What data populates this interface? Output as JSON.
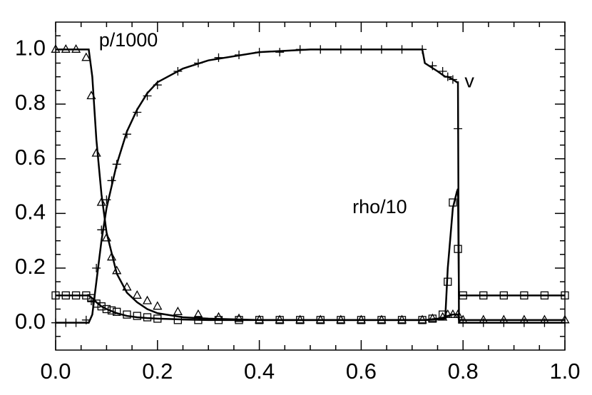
{
  "chart_data": {
    "type": "line",
    "xlim": [
      0,
      1
    ],
    "ylim": [
      -0.1,
      1.1
    ],
    "xticks": [
      {
        "value": 0,
        "label": "0.0"
      },
      0.2,
      0.4,
      0.6,
      0.8,
      {
        "value": 1,
        "label": "1.0"
      }
    ],
    "yticks": [
      {
        "value": 0,
        "label": "0.0"
      },
      0.2,
      0.4,
      0.6,
      0.8,
      {
        "value": 1,
        "label": "1.0"
      }
    ],
    "xminorticks": [
      0.05,
      0.1,
      0.15,
      0.25,
      0.3,
      0.35,
      0.45,
      0.5,
      0.55,
      0.65,
      0.7,
      0.75,
      0.85,
      0.9,
      0.95
    ],
    "yminorticks": [
      -0.05,
      0.05,
      0.1,
      0.15,
      0.25,
      0.3,
      0.35,
      0.45,
      0.5,
      0.55,
      0.65,
      0.7,
      0.75,
      0.85,
      0.9,
      0.95,
      1.05
    ],
    "x": [
      0,
      0.065,
      0.072,
      0.08,
      0.09,
      0.1,
      0.12,
      0.14,
      0.16,
      0.18,
      0.2,
      0.25,
      0.3,
      0.4,
      0.5,
      0.72,
      0.725,
      0.75,
      0.765,
      0.77,
      0.78,
      0.788,
      0.79,
      0.792,
      1
    ],
    "marker_x": [
      0,
      0.02,
      0.04,
      0.06,
      0.07,
      0.08,
      0.09,
      0.1,
      0.11,
      0.12,
      0.14,
      0.16,
      0.18,
      0.2,
      0.24,
      0.28,
      0.32,
      0.36,
      0.4,
      0.44,
      0.48,
      0.52,
      0.56,
      0.6,
      0.64,
      0.68,
      0.72,
      0.74,
      0.76,
      0.77,
      0.78,
      0.79,
      0.8,
      0.84,
      0.88,
      0.92,
      0.96,
      1
    ],
    "series": [
      {
        "name": "p/1000",
        "color": "#000000",
        "marker": "triangle",
        "values": [
          1,
          1,
          0.9,
          0.67,
          0.47,
          0.33,
          0.18,
          0.11,
          0.075,
          0.05,
          0.035,
          0.02,
          0.015,
          0.01,
          0.01,
          0.01,
          0.01,
          0.015,
          0.02,
          0.025,
          0.03,
          0.03,
          0.03,
          0.01,
          0.01
        ],
        "marker_values": [
          1,
          1,
          1,
          0.97,
          0.83,
          0.62,
          0.44,
          0.31,
          0.24,
          0.19,
          0.13,
          0.1,
          0.08,
          0.06,
          0.04,
          0.03,
          0.02,
          0.015,
          0.01,
          0.01,
          0.01,
          0.01,
          0.01,
          0.01,
          0.01,
          0.01,
          0.01,
          0.015,
          0.02,
          0.03,
          0.03,
          0.03,
          0.01,
          0.01,
          0.01,
          0.01,
          0.01,
          0.01
        ]
      },
      {
        "name": "v",
        "color": "#000000",
        "marker": "plus",
        "values": [
          0,
          0,
          0.03,
          0.15,
          0.3,
          0.42,
          0.58,
          0.7,
          0.78,
          0.84,
          0.88,
          0.93,
          0.96,
          0.99,
          1,
          1,
          0.95,
          0.92,
          0.9,
          0.9,
          0.89,
          0.88,
          0.88,
          0,
          0
        ],
        "marker_values": [
          0,
          0,
          0,
          0.01,
          0.08,
          0.2,
          0.34,
          0.45,
          0.52,
          0.58,
          0.69,
          0.77,
          0.83,
          0.87,
          0.92,
          0.95,
          0.97,
          0.98,
          0.99,
          0.99,
          1,
          1,
          1,
          1,
          1,
          1,
          1,
          0.94,
          0.92,
          0.9,
          0.89,
          0.71,
          0,
          0,
          0,
          0,
          0,
          0
        ]
      },
      {
        "name": "rho/10",
        "color": "#000000",
        "marker": "square",
        "values": [
          0.1,
          0.1,
          0.09,
          0.075,
          0.06,
          0.05,
          0.035,
          0.025,
          0.02,
          0.017,
          0.015,
          0.012,
          0.01,
          0.01,
          0.01,
          0.01,
          0.01,
          0.012,
          0.015,
          0.2,
          0.42,
          0.48,
          0.49,
          0.1,
          0.1
        ],
        "marker_values": [
          0.1,
          0.1,
          0.1,
          0.1,
          0.09,
          0.07,
          0.06,
          0.05,
          0.045,
          0.04,
          0.03,
          0.025,
          0.02,
          0.015,
          0.01,
          0.01,
          0.01,
          0.01,
          0.01,
          0.01,
          0.01,
          0.01,
          0.01,
          0.01,
          0.01,
          0.01,
          0.01,
          0.015,
          0.03,
          0.15,
          0.44,
          0.27,
          0.1,
          0.1,
          0.1,
          0.1,
          0.1,
          0.1
        ]
      }
    ]
  }
}
